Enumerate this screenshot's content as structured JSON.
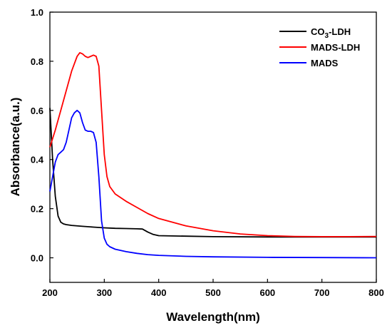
{
  "chart_data": {
    "type": "line",
    "xlabel": "Wavelength(nm)",
    "ylabel": "Absorbance(a.u.)",
    "xlim": [
      200,
      800
    ],
    "ylim": [
      -0.1,
      1.0
    ],
    "x_ticks": [
      200,
      300,
      400,
      500,
      600,
      700,
      800
    ],
    "x_tick_labels": [
      "200",
      "300",
      "400",
      "500",
      "600",
      "700",
      "800"
    ],
    "y_ticks": [
      0.0,
      0.2,
      0.4,
      0.6,
      0.8,
      1.0
    ],
    "y_tick_labels": [
      "0.0",
      "0.2",
      "0.4",
      "0.6",
      "0.8",
      "1.0"
    ],
    "grid": false,
    "legend_position": "top-right",
    "series": [
      {
        "name": "CO3-LDH",
        "legend_main": "CO",
        "legend_sub": "3",
        "legend_tail": "-LDH",
        "color": "#000000",
        "x": [
          200,
          205,
          210,
          215,
          220,
          225,
          230,
          240,
          260,
          280,
          300,
          320,
          340,
          360,
          370,
          380,
          390,
          400,
          450,
          500,
          600,
          700,
          800
        ],
        "y": [
          0.61,
          0.4,
          0.25,
          0.17,
          0.145,
          0.138,
          0.135,
          0.132,
          0.128,
          0.125,
          0.122,
          0.12,
          0.119,
          0.118,
          0.117,
          0.105,
          0.095,
          0.09,
          0.088,
          0.086,
          0.085,
          0.085,
          0.085
        ]
      },
      {
        "name": "MADS-LDH",
        "color": "#ff0000",
        "x": [
          200,
          210,
          220,
          230,
          240,
          250,
          255,
          260,
          265,
          270,
          275,
          280,
          285,
          290,
          295,
          300,
          305,
          310,
          320,
          340,
          360,
          380,
          400,
          450,
          500,
          550,
          600,
          650,
          700,
          750,
          800
        ],
        "y": [
          0.45,
          0.52,
          0.6,
          0.68,
          0.76,
          0.82,
          0.835,
          0.83,
          0.82,
          0.815,
          0.82,
          0.825,
          0.82,
          0.78,
          0.6,
          0.42,
          0.33,
          0.29,
          0.26,
          0.23,
          0.205,
          0.18,
          0.16,
          0.13,
          0.11,
          0.097,
          0.09,
          0.087,
          0.086,
          0.086,
          0.087
        ]
      },
      {
        "name": "MADS",
        "color": "#0000ff",
        "x": [
          200,
          205,
          210,
          215,
          220,
          225,
          230,
          235,
          240,
          245,
          250,
          255,
          260,
          265,
          270,
          275,
          280,
          285,
          290,
          295,
          300,
          305,
          310,
          320,
          340,
          360,
          380,
          400,
          450,
          500,
          600,
          700,
          800
        ],
        "y": [
          0.27,
          0.33,
          0.39,
          0.42,
          0.43,
          0.44,
          0.47,
          0.52,
          0.57,
          0.59,
          0.6,
          0.59,
          0.55,
          0.52,
          0.515,
          0.515,
          0.51,
          0.47,
          0.33,
          0.15,
          0.08,
          0.055,
          0.045,
          0.035,
          0.025,
          0.018,
          0.013,
          0.01,
          0.006,
          0.004,
          0.002,
          0.001,
          0.0
        ]
      }
    ]
  }
}
